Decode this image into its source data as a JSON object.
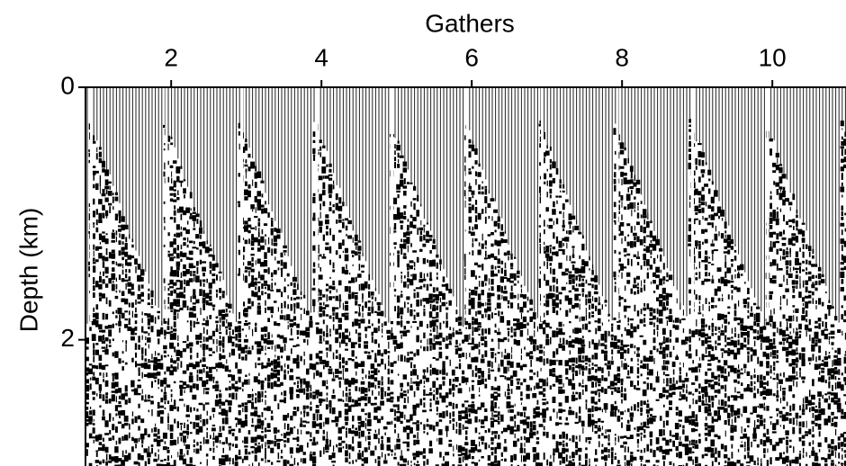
{
  "chart_data": {
    "type": "image",
    "xlabel": "Gathers",
    "ylabel": "Depth (km)",
    "xlim": [
      0.86,
      10.98
    ],
    "xticks": [
      2,
      4,
      6,
      8,
      10
    ],
    "ylim": [
      0,
      3
    ],
    "yticks": [
      0,
      2
    ],
    "y_inverted": true,
    "x_axis_position": "top"
  }
}
